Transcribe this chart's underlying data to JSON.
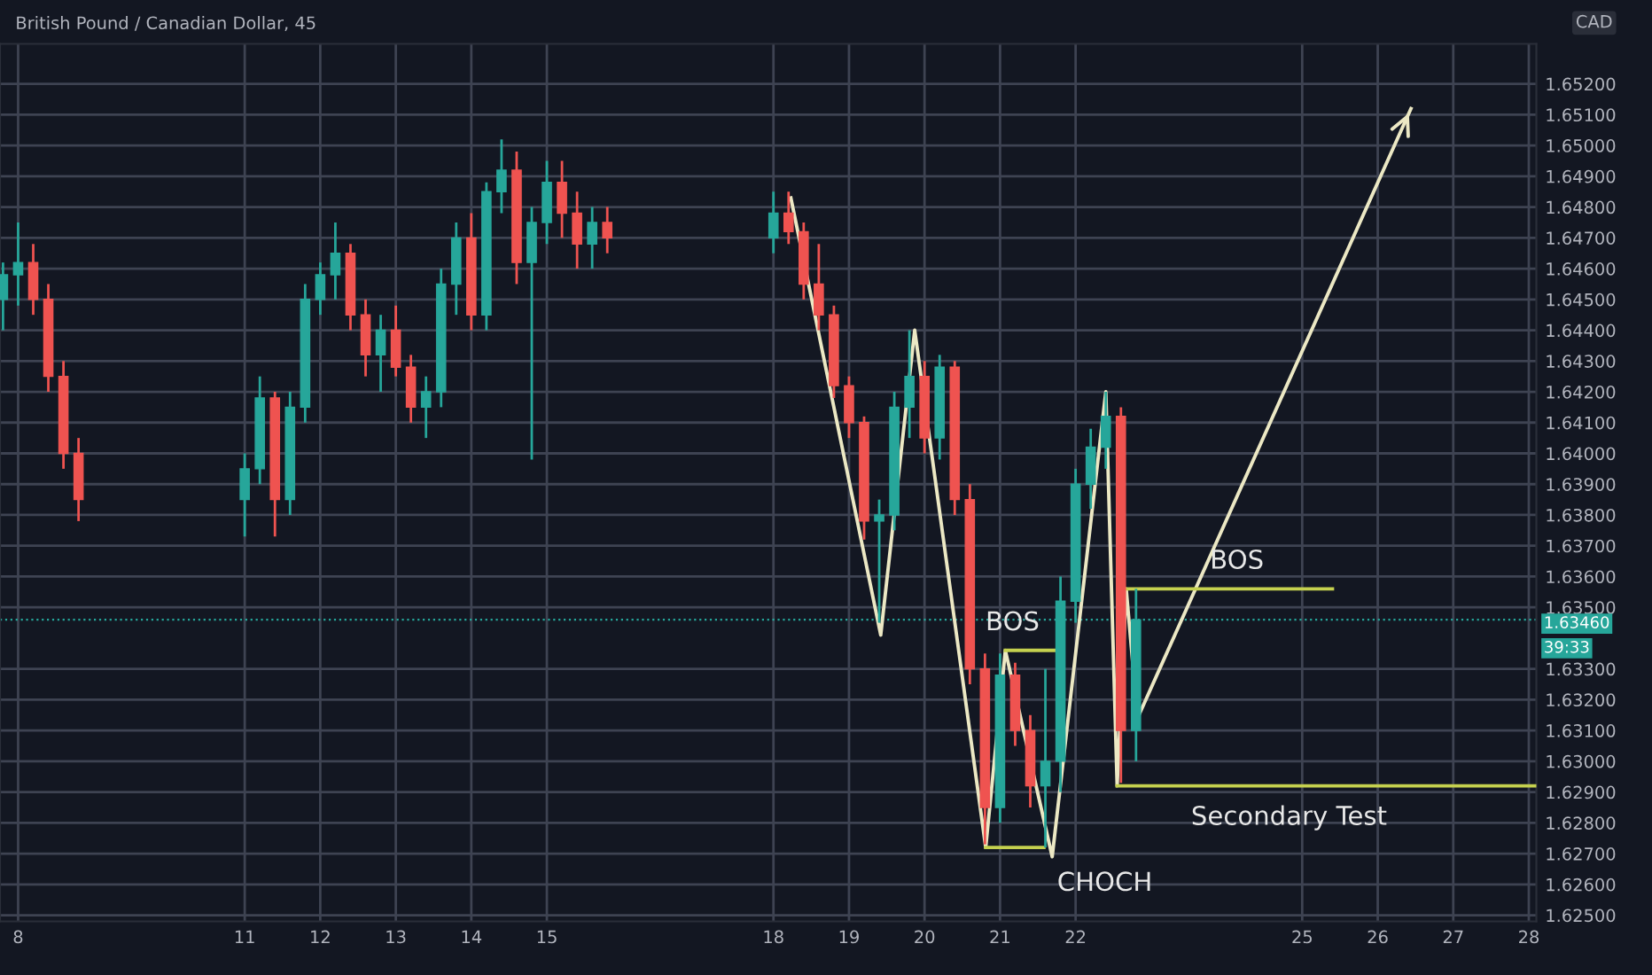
{
  "chart_data": {
    "type": "candlestick",
    "title": "British Pound / Canadian Dollar, 45",
    "x": [
      7.8,
      8.0,
      8.2,
      8.4,
      8.6,
      8.8,
      11.0,
      11.2,
      11.4,
      11.6,
      11.8,
      12.0,
      12.2,
      12.4,
      12.6,
      12.8,
      13.0,
      13.2,
      13.4,
      13.6,
      13.8,
      14.0,
      14.2,
      14.4,
      14.6,
      14.8,
      15.0,
      15.2,
      15.4,
      15.6,
      15.8,
      18.0,
      18.2,
      18.4,
      18.6,
      18.8,
      19.0,
      19.2,
      19.4,
      19.6,
      19.8,
      20.0,
      20.2,
      20.4,
      20.6,
      20.8,
      21.0,
      21.2,
      21.4,
      21.6,
      21.8,
      22.0,
      22.2,
      22.4,
      22.6,
      22.8
    ],
    "ohlc": [
      [
        1.645,
        1.6462,
        1.644,
        1.6458
      ],
      [
        1.6458,
        1.6475,
        1.6448,
        1.6462
      ],
      [
        1.6462,
        1.6468,
        1.6445,
        1.645
      ],
      [
        1.645,
        1.6455,
        1.642,
        1.6425
      ],
      [
        1.6425,
        1.643,
        1.6395,
        1.64
      ],
      [
        1.64,
        1.6405,
        1.6378,
        1.6385
      ],
      [
        1.6385,
        1.64,
        1.6373,
        1.6395
      ],
      [
        1.6395,
        1.6425,
        1.639,
        1.6418
      ],
      [
        1.6418,
        1.642,
        1.6373,
        1.6385
      ],
      [
        1.6385,
        1.642,
        1.638,
        1.6415
      ],
      [
        1.6415,
        1.6455,
        1.641,
        1.645
      ],
      [
        1.645,
        1.6462,
        1.6445,
        1.6458
      ],
      [
        1.6458,
        1.6475,
        1.645,
        1.6465
      ],
      [
        1.6465,
        1.6468,
        1.644,
        1.6445
      ],
      [
        1.6445,
        1.645,
        1.6425,
        1.6432
      ],
      [
        1.6432,
        1.6445,
        1.642,
        1.644
      ],
      [
        1.644,
        1.6448,
        1.6425,
        1.6428
      ],
      [
        1.6428,
        1.6432,
        1.641,
        1.6415
      ],
      [
        1.6415,
        1.6425,
        1.6405,
        1.642
      ],
      [
        1.642,
        1.646,
        1.6415,
        1.6455
      ],
      [
        1.6455,
        1.6475,
        1.6445,
        1.647
      ],
      [
        1.647,
        1.6478,
        1.644,
        1.6445
      ],
      [
        1.6445,
        1.6488,
        1.644,
        1.6485
      ],
      [
        1.6485,
        1.6502,
        1.6478,
        1.6492
      ],
      [
        1.6492,
        1.6498,
        1.6455,
        1.6462
      ],
      [
        1.6462,
        1.648,
        1.6398,
        1.6475
      ],
      [
        1.6475,
        1.6495,
        1.6468,
        1.6488
      ],
      [
        1.6488,
        1.6495,
        1.647,
        1.6478
      ],
      [
        1.6478,
        1.6485,
        1.646,
        1.6468
      ],
      [
        1.6468,
        1.648,
        1.646,
        1.6475
      ],
      [
        1.6475,
        1.648,
        1.6465,
        1.647
      ],
      [
        1.647,
        1.6485,
        1.6465,
        1.6478
      ],
      [
        1.6478,
        1.6485,
        1.6468,
        1.6472
      ],
      [
        1.6472,
        1.6475,
        1.645,
        1.6455
      ],
      [
        1.6455,
        1.6468,
        1.644,
        1.6445
      ],
      [
        1.6445,
        1.6448,
        1.6418,
        1.6422
      ],
      [
        1.6422,
        1.6425,
        1.6405,
        1.641
      ],
      [
        1.641,
        1.6412,
        1.6372,
        1.6378
      ],
      [
        1.6378,
        1.6385,
        1.6345,
        1.638
      ],
      [
        1.638,
        1.642,
        1.6375,
        1.6415
      ],
      [
        1.6415,
        1.644,
        1.6405,
        1.6425
      ],
      [
        1.6425,
        1.643,
        1.64,
        1.6405
      ],
      [
        1.6405,
        1.6432,
        1.6398,
        1.6428
      ],
      [
        1.6428,
        1.643,
        1.638,
        1.6385
      ],
      [
        1.6385,
        1.639,
        1.6325,
        1.633
      ],
      [
        1.633,
        1.6335,
        1.6273,
        1.6285
      ],
      [
        1.6285,
        1.6335,
        1.628,
        1.6328
      ],
      [
        1.6328,
        1.6332,
        1.6305,
        1.631
      ],
      [
        1.631,
        1.6315,
        1.6285,
        1.6292
      ],
      [
        1.6292,
        1.633,
        1.6272,
        1.63
      ],
      [
        1.63,
        1.636,
        1.629,
        1.6352
      ],
      [
        1.6352,
        1.6395,
        1.6345,
        1.639
      ],
      [
        1.639,
        1.6408,
        1.6382,
        1.6402
      ],
      [
        1.6402,
        1.642,
        1.6395,
        1.6412
      ],
      [
        1.6412,
        1.6415,
        1.6293,
        1.631
      ],
      [
        1.631,
        1.6356,
        1.63,
        1.6346
      ]
    ],
    "series": [
      {
        "type": "line",
        "color": "#ece8c4",
        "x": [
          18.23,
          19.42,
          19.87,
          20.81,
          21.07,
          21.69,
          22.4,
          22.55,
          22.67,
          22.82,
          26.44
        ],
        "values": [
          1.6483,
          1.6341,
          1.644,
          1.6272,
          1.6336,
          1.6269,
          1.642,
          1.6292,
          1.6356,
          1.6314,
          1.6512
        ]
      },
      {
        "type": "line",
        "color": "#c5d14f",
        "x": [
          21.07,
          21.72
        ],
        "values": [
          1.6336,
          1.6336
        ]
      },
      {
        "type": "line",
        "color": "#c5d14f",
        "x": [
          20.81,
          21.58
        ],
        "values": [
          1.6272,
          1.6272
        ]
      },
      {
        "type": "line",
        "color": "#c5d14f",
        "x": [
          22.67,
          25.4
        ],
        "values": [
          1.6356,
          1.6356
        ]
      },
      {
        "type": "line",
        "color": "#c5d14f",
        "x": [
          22.55,
          28.1
        ],
        "values": [
          1.6292,
          1.6292
        ]
      }
    ],
    "ref_lines": [
      {
        "axis": "y",
        "value": 1.6346,
        "label": "1.63460",
        "color": "#26a69a",
        "line_style": "dotted"
      }
    ],
    "annotations": [
      "BOS",
      "CHOCH",
      "BOS",
      "Secondary Test",
      "39:33",
      "CAD"
    ],
    "xlim": [
      7.76,
      28.1
    ],
    "ylim": [
      1.6248,
      1.6533
    ],
    "xticks": [
      8,
      11,
      12,
      13,
      14,
      15,
      18,
      19,
      20,
      21,
      22,
      25,
      26,
      27,
      28
    ],
    "yticks": [
      {
        "value": 1.625,
        "label": "1.62500"
      },
      {
        "value": 1.626,
        "label": "1.62600"
      },
      {
        "value": 1.627,
        "label": "1.62700"
      },
      {
        "value": 1.628,
        "label": "1.62800"
      },
      {
        "value": 1.629,
        "label": "1.62900"
      },
      {
        "value": 1.63,
        "label": "1.63000"
      },
      {
        "value": 1.631,
        "label": "1.63100"
      },
      {
        "value": 1.632,
        "label": "1.63200"
      },
      {
        "value": 1.633,
        "label": "1.63300"
      },
      {
        "value": 1.635,
        "label": "1.63500"
      },
      {
        "value": 1.636,
        "label": "1.63600"
      },
      {
        "value": 1.637,
        "label": "1.63700"
      },
      {
        "value": 1.638,
        "label": "1.63800"
      },
      {
        "value": 1.639,
        "label": "1.63900"
      },
      {
        "value": 1.64,
        "label": "1.64000"
      },
      {
        "value": 1.641,
        "label": "1.64100"
      },
      {
        "value": 1.642,
        "label": "1.64200"
      },
      {
        "value": 1.643,
        "label": "1.64300"
      },
      {
        "value": 1.644,
        "label": "1.64400"
      },
      {
        "value": 1.645,
        "label": "1.64500"
      },
      {
        "value": 1.646,
        "label": "1.64600"
      },
      {
        "value": 1.647,
        "label": "1.64700"
      },
      {
        "value": 1.648,
        "label": "1.64800"
      },
      {
        "value": 1.649,
        "label": "1.64900"
      },
      {
        "value": 1.65,
        "label": "1.65000"
      },
      {
        "value": 1.651,
        "label": "1.65100"
      },
      {
        "value": 1.652,
        "label": "1.65200"
      }
    ],
    "grid": true
  }
}
